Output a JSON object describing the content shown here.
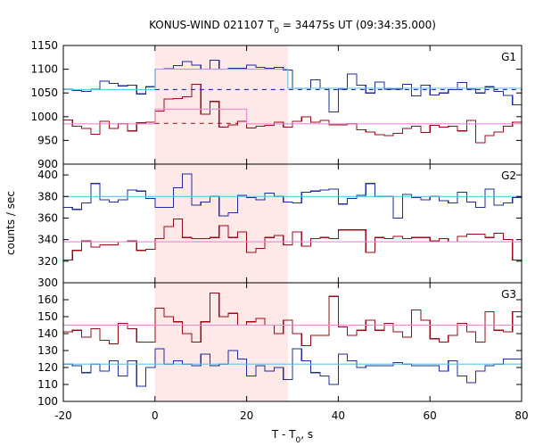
{
  "chart_data": {
    "type": "line",
    "title": {
      "main": "KONUS-WIND 021107 T",
      "sub": "0",
      "rest": " = 34475s UT (09:34:35.000)"
    },
    "xlabel": {
      "main": "T - T",
      "sub": "0",
      "rest": ", s"
    },
    "ylabel": "counts / sec",
    "xlim": [
      -20,
      80
    ],
    "xticks": [
      -20,
      0,
      20,
      40,
      60,
      80
    ],
    "highlight": {
      "from": 0,
      "to": 29,
      "color": "#ffe8e8"
    },
    "colors": {
      "blue": "#1e2e9e",
      "red": "#9b0a16",
      "cyan": "#5bc8e8",
      "pink": "#e88cd4"
    },
    "panels": [
      {
        "label": "G1",
        "ylim": [
          900,
          1150
        ],
        "yticks": [
          900,
          950,
          1000,
          1050,
          1100,
          1150
        ],
        "series": [
          {
            "color": "#1e2e9e",
            "edges": [
              -20,
              -18,
              -16,
              -14,
              -12,
              -10,
              -8,
              -6,
              -4,
              -2,
              0,
              2,
              4,
              6,
              8,
              10,
              12,
              14,
              16,
              18,
              20,
              22,
              24,
              26,
              28,
              30,
              32,
              34,
              36,
              38,
              40,
              42,
              44,
              46,
              48,
              50,
              52,
              54,
              56,
              58,
              60,
              62,
              64,
              66,
              68,
              70,
              72,
              74,
              76,
              78,
              80
            ],
            "values": [
              1058,
              1055,
              1053,
              1058,
              1075,
              1070,
              1065,
              1066,
              1048,
              1063,
              1100,
              1101,
              1108,
              1116,
              1109,
              1100,
              1119,
              1100,
              1102,
              1102,
              1109,
              1104,
              1102,
              1104,
              1098,
              1060,
              1060,
              1078,
              1060,
              1010,
              1058,
              1090,
              1066,
              1050,
              1073,
              1058,
              1058,
              1068,
              1044,
              1066,
              1046,
              1050,
              1057,
              1072,
              1058,
              1050,
              1063,
              1053,
              1045,
              1025
            ]
          },
          {
            "color": "#9b0a16",
            "edges": [
              -20,
              -18,
              -16,
              -14,
              -12,
              -10,
              -8,
              -6,
              -4,
              -2,
              0,
              2,
              4,
              6,
              8,
              10,
              12,
              14,
              16,
              18,
              20,
              22,
              24,
              26,
              28,
              30,
              32,
              34,
              36,
              38,
              40,
              42,
              44,
              46,
              48,
              50,
              52,
              54,
              56,
              58,
              60,
              62,
              64,
              66,
              68,
              70,
              72,
              74,
              76,
              78,
              80
            ],
            "values": [
              993,
              980,
              975,
              963,
              990,
              975,
              985,
              970,
              987,
              988,
              1012,
              1037,
              1038,
              1042,
              1068,
              1005,
              1032,
              978,
              983,
              990,
              976,
              980,
              982,
              988,
              978,
              990,
              1000,
              988,
              992,
              983,
              983,
              985,
              972,
              968,
              962,
              960,
              965,
              975,
              980,
              967,
              982,
              978,
              980,
              970,
              992,
              945,
              960,
              968,
              980,
              988
            ]
          },
          {
            "color": "#5bc8e8",
            "steps": [
              [
                -20,
                0,
                1057
              ],
              [
                0,
                29,
                1100
              ],
              [
                29,
                80,
                1060
              ]
            ]
          },
          {
            "color": "#e88cd4",
            "steps": [
              [
                -20,
                0,
                985
              ],
              [
                0,
                20,
                1016
              ],
              [
                20,
                80,
                985
              ]
            ]
          },
          {
            "color": "#1e2e9e",
            "dashed": true,
            "y": 1057,
            "x": [
              0,
              80
            ]
          },
          {
            "color": "#9b0a16",
            "dashed": true,
            "y": 986,
            "x": [
              0,
              18
            ]
          }
        ]
      },
      {
        "label": "G2",
        "ylim": [
          300,
          410
        ],
        "yticks": [
          300,
          320,
          340,
          360,
          380,
          400
        ],
        "series": [
          {
            "color": "#1e2e9e",
            "edges": [
              -20,
              -18,
              -16,
              -14,
              -12,
              -10,
              -8,
              -6,
              -4,
              -2,
              0,
              2,
              4,
              6,
              8,
              10,
              12,
              14,
              16,
              18,
              20,
              22,
              24,
              26,
              28,
              30,
              32,
              34,
              36,
              38,
              40,
              42,
              44,
              46,
              48,
              50,
              52,
              54,
              56,
              58,
              60,
              62,
              64,
              66,
              68,
              70,
              72,
              74,
              76,
              78,
              80
            ],
            "values": [
              370,
              368,
              374,
              392,
              377,
              375,
              377,
              386,
              385,
              378,
              370,
              370,
              388,
              401,
              372,
              375,
              380,
              362,
              365,
              381,
              379,
              377,
              383,
              380,
              375,
              374,
              384,
              385,
              386,
              387,
              373,
              378,
              381,
              392,
              380,
              380,
              360,
              382,
              379,
              377,
              380,
              376,
              374,
              384,
              375,
              370,
              387,
              372,
              374,
              379
            ]
          },
          {
            "color": "#9b0a16",
            "edges": [
              -20,
              -18,
              -16,
              -14,
              -12,
              -10,
              -8,
              -6,
              -4,
              -2,
              0,
              2,
              4,
              6,
              8,
              10,
              12,
              14,
              16,
              18,
              20,
              22,
              24,
              26,
              28,
              30,
              32,
              34,
              36,
              38,
              40,
              42,
              44,
              46,
              48,
              50,
              52,
              54,
              56,
              58,
              60,
              62,
              64,
              66,
              68,
              70,
              72,
              74,
              76,
              78,
              80
            ],
            "values": [
              321,
              330,
              339,
              333,
              335,
              335,
              338,
              339,
              330,
              331,
              341,
              352,
              359,
              342,
              341,
              341,
              342,
              353,
              342,
              347,
              328,
              332,
              342,
              344,
              335,
              347,
              334,
              341,
              342,
              341,
              349,
              349,
              349,
              328,
              342,
              341,
              343,
              341,
              342,
              342,
              339,
              341,
              338,
              343,
              345,
              345,
              342,
              346,
              340,
              321
            ]
          },
          {
            "color": "#5bc8e8",
            "steps": [
              [
                -20,
                80,
                380
              ]
            ]
          },
          {
            "color": "#e88cd4",
            "steps": [
              [
                -20,
                80,
                338
              ]
            ]
          }
        ]
      },
      {
        "label": "G3",
        "ylim": [
          100,
          170
        ],
        "yticks": [
          100,
          110,
          120,
          130,
          140,
          150,
          160
        ],
        "series": [
          {
            "color": "#1e2e9e",
            "edges": [
              -20,
              -18,
              -16,
              -14,
              -12,
              -10,
              -8,
              -6,
              -4,
              -2,
              0,
              2,
              4,
              6,
              8,
              10,
              12,
              14,
              16,
              18,
              20,
              22,
              24,
              26,
              28,
              30,
              32,
              34,
              36,
              38,
              40,
              42,
              44,
              46,
              48,
              50,
              52,
              54,
              56,
              58,
              60,
              62,
              64,
              66,
              68,
              70,
              72,
              74,
              76,
              78,
              80
            ],
            "values": [
              122,
              121,
              117,
              122,
              118,
              124,
              115,
              124,
              109,
              120,
              131,
              122,
              124,
              122,
              121,
              128,
              121,
              122,
              130,
              125,
              115,
              121,
              118,
              120,
              113,
              131,
              124,
              117,
              115,
              110,
              128,
              124,
              120,
              121,
              121,
              121,
              123,
              122,
              121,
              121,
              121,
              118,
              124,
              115,
              111,
              118,
              121,
              122,
              125,
              125
            ]
          },
          {
            "color": "#9b0a16",
            "edges": [
              -20,
              -18,
              -16,
              -14,
              -12,
              -10,
              -8,
              -6,
              -4,
              -2,
              0,
              2,
              4,
              6,
              8,
              10,
              12,
              14,
              16,
              18,
              20,
              22,
              24,
              26,
              28,
              30,
              32,
              34,
              36,
              38,
              40,
              42,
              44,
              46,
              48,
              50,
              52,
              54,
              56,
              58,
              60,
              62,
              64,
              66,
              68,
              70,
              72,
              74,
              76,
              78,
              80
            ],
            "values": [
              141,
              142,
              138,
              143,
              136,
              134,
              146,
              143,
              135,
              135,
              155,
              150,
              147,
              140,
              135,
              147,
              164,
              150,
              152,
              145,
              147,
              149,
              145,
              140,
              148,
              140,
              133,
              139,
              139,
              162,
              144,
              139,
              142,
              148,
              142,
              146,
              141,
              138,
              154,
              148,
              137,
              135,
              139,
              146,
              141,
              135,
              153,
              142,
              141,
              153
            ]
          },
          {
            "color": "#5bc8e8",
            "steps": [
              [
                -20,
                80,
                122
              ]
            ]
          },
          {
            "color": "#e88cd4",
            "steps": [
              [
                -20,
                80,
                145
              ]
            ]
          }
        ]
      }
    ]
  }
}
